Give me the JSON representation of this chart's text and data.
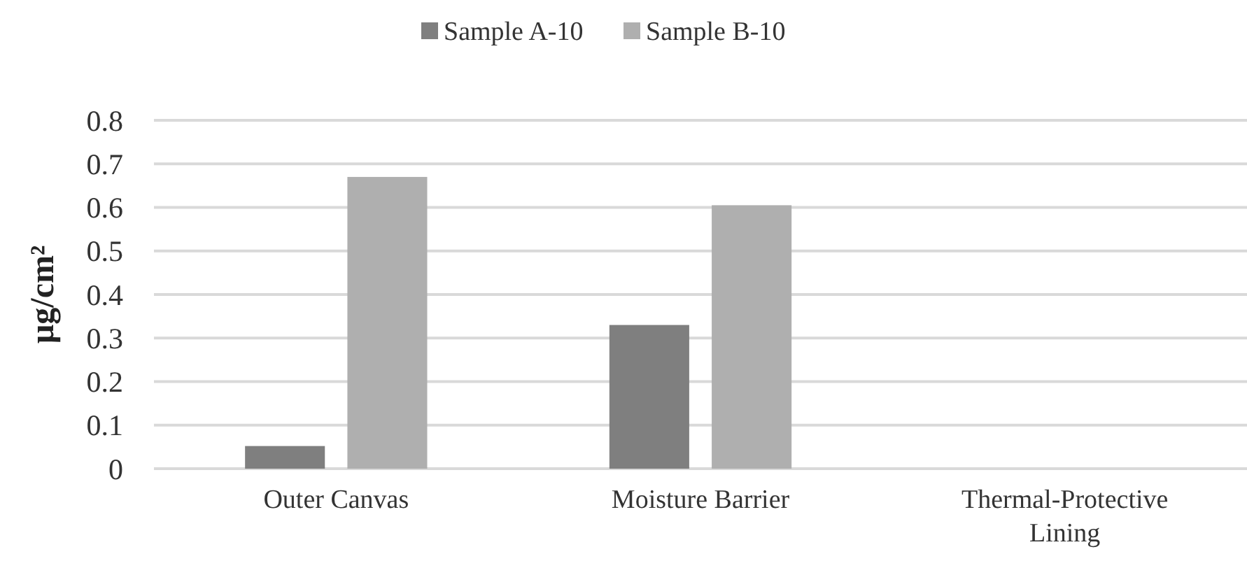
{
  "chart_data": {
    "type": "bar",
    "ylabel": "µg/cm²",
    "categories": [
      "Outer Canvas",
      "Moisture Barrier",
      "Thermal-Protective Lining"
    ],
    "series": [
      {
        "name": "Sample A-10",
        "color": "#7f7f7f",
        "values": [
          0.052,
          0.33,
          0
        ]
      },
      {
        "name": "Sample B-10",
        "color": "#afafaf",
        "values": [
          0.67,
          0.605,
          0
        ]
      }
    ],
    "ylim": [
      0,
      0.8
    ],
    "yticks": [
      0,
      0.1,
      0.2,
      0.3,
      0.4,
      0.5,
      0.6,
      0.7,
      0.8
    ],
    "grid": "y",
    "legend": "top"
  }
}
